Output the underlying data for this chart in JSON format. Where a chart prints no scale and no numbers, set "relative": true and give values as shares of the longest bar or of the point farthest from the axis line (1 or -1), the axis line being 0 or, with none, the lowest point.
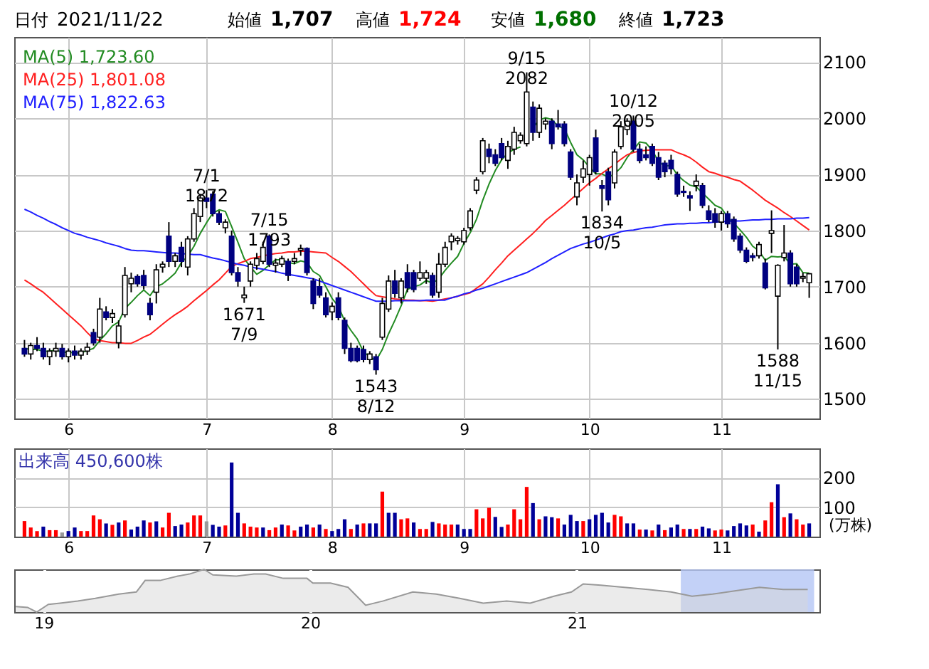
{
  "chart_data": [
    {
      "type": "candlestick",
      "title": "日付 2021/11/22",
      "annotations": [
        "始値 1,707",
        "高値 1,724",
        "安値 1,680",
        "終値 1,723",
        {
          "text": "7/1 1872",
          "y": 1872
        },
        {
          "text": "1671 7/9",
          "y": 1671
        },
        {
          "text": "7/15 1793",
          "y": 1793
        },
        {
          "text": "1543 8/12",
          "y": 1543
        },
        {
          "text": "9/15 2082",
          "y": 2082
        },
        {
          "text": "1834 10/5",
          "y": 1834
        },
        {
          "text": "10/12 2005",
          "y": 2005
        },
        {
          "text": "1588 11/15",
          "y": 1588
        }
      ],
      "categories": [
        null,
        null,
        null,
        null,
        null,
        null,
        null,
        "6",
        null,
        null,
        null,
        null,
        null,
        null,
        null,
        null,
        null,
        null,
        null,
        null,
        null,
        null,
        null,
        null,
        null,
        null,
        null,
        null,
        null,
        "7",
        null,
        null,
        null,
        null,
        null,
        null,
        null,
        null,
        null,
        null,
        null,
        null,
        null,
        null,
        null,
        null,
        null,
        null,
        null,
        "8",
        null,
        null,
        null,
        null,
        null,
        null,
        null,
        null,
        null,
        null,
        null,
        null,
        null,
        null,
        null,
        null,
        null,
        null,
        null,
        null,
        "9",
        null,
        null,
        null,
        null,
        null,
        null,
        null,
        null,
        null,
        null,
        null,
        null,
        null,
        null,
        null,
        null,
        null,
        null,
        null,
        "10",
        null,
        null,
        null,
        null,
        null,
        null,
        null,
        null,
        null,
        null,
        null,
        null,
        null,
        null,
        null,
        null,
        null,
        null,
        null,
        null,
        "11",
        null,
        null,
        null,
        null,
        null,
        null,
        null,
        null,
        null,
        null,
        null,
        null,
        null,
        null
      ],
      "ohlc": [
        [
          1590,
          1605,
          1575,
          1580
        ],
        [
          1580,
          1600,
          1570,
          1595
        ],
        [
          1595,
          1610,
          1585,
          1590
        ],
        [
          1590,
          1600,
          1570,
          1575
        ],
        [
          1575,
          1590,
          1560,
          1585
        ],
        [
          1585,
          1600,
          1575,
          1590
        ],
        [
          1590,
          1598,
          1570,
          1575
        ],
        [
          1575,
          1590,
          1565,
          1585
        ],
        [
          1585,
          1595,
          1570,
          1578
        ],
        [
          1578,
          1590,
          1570,
          1585
        ],
        [
          1585,
          1600,
          1578,
          1592
        ],
        [
          1618,
          1625,
          1595,
          1600
        ],
        [
          1610,
          1680,
          1600,
          1660
        ],
        [
          1655,
          1665,
          1640,
          1645
        ],
        [
          1645,
          1660,
          1635,
          1652
        ],
        [
          1600,
          1640,
          1590,
          1630
        ],
        [
          1650,
          1735,
          1645,
          1720
        ],
        [
          1705,
          1725,
          1690,
          1715
        ],
        [
          1718,
          1722,
          1700,
          1705
        ],
        [
          1720,
          1730,
          1695,
          1702
        ],
        [
          1670,
          1680,
          1640,
          1650
        ],
        [
          1690,
          1740,
          1670,
          1730
        ],
        [
          1735,
          1745,
          1725,
          1740
        ],
        [
          1790,
          1815,
          1735,
          1745
        ],
        [
          1745,
          1760,
          1735,
          1755
        ],
        [
          1770,
          1780,
          1735,
          1745
        ],
        [
          1735,
          1790,
          1720,
          1785
        ],
        [
          1785,
          1840,
          1780,
          1830
        ],
        [
          1825,
          1865,
          1815,
          1858
        ],
        [
          1858,
          1872,
          1840,
          1852
        ],
        [
          1865,
          1870,
          1825,
          1830
        ],
        [
          1830,
          1835,
          1810,
          1815
        ],
        [
          1805,
          1820,
          1795,
          1815
        ],
        [
          1790,
          1800,
          1720,
          1725
        ],
        [
          1725,
          1735,
          1700,
          1710
        ],
        [
          1680,
          1700,
          1671,
          1685
        ],
        [
          1710,
          1745,
          1700,
          1740
        ],
        [
          1738,
          1760,
          1730,
          1750
        ],
        [
          1745,
          1780,
          1740,
          1770
        ],
        [
          1790,
          1793,
          1735,
          1740
        ],
        [
          1738,
          1750,
          1725,
          1742
        ],
        [
          1740,
          1755,
          1735,
          1750
        ],
        [
          1745,
          1750,
          1710,
          1720
        ],
        [
          1745,
          1760,
          1740,
          1750
        ],
        [
          1765,
          1775,
          1755,
          1768
        ],
        [
          1768,
          1770,
          1720,
          1725
        ],
        [
          1710,
          1715,
          1660,
          1670
        ],
        [
          1700,
          1715,
          1680,
          1685
        ],
        [
          1680,
          1690,
          1645,
          1650
        ],
        [
          1655,
          1672,
          1640,
          1665
        ],
        [
          1680,
          1690,
          1640,
          1645
        ],
        [
          1640,
          1645,
          1580,
          1590
        ],
        [
          1590,
          1600,
          1565,
          1568
        ],
        [
          1590,
          1595,
          1565,
          1568
        ],
        [
          1588,
          1595,
          1565,
          1570
        ],
        [
          1570,
          1585,
          1562,
          1580
        ],
        [
          1575,
          1580,
          1543,
          1552
        ],
        [
          1610,
          1680,
          1605,
          1670
        ],
        [
          1660,
          1720,
          1655,
          1710
        ],
        [
          1710,
          1730,
          1680,
          1688
        ],
        [
          1680,
          1715,
          1670,
          1710
        ],
        [
          1725,
          1740,
          1690,
          1698
        ],
        [
          1725,
          1730,
          1690,
          1695
        ],
        [
          1715,
          1745,
          1710,
          1725
        ],
        [
          1715,
          1730,
          1705,
          1725
        ],
        [
          1720,
          1725,
          1680,
          1685
        ],
        [
          1690,
          1760,
          1680,
          1740
        ],
        [
          1740,
          1780,
          1735,
          1770
        ],
        [
          1780,
          1795,
          1765,
          1790
        ],
        [
          1782,
          1790,
          1775,
          1786
        ],
        [
          1780,
          1805,
          1775,
          1800
        ],
        [
          1805,
          1840,
          1800,
          1835
        ],
        [
          1872,
          1895,
          1865,
          1890
        ],
        [
          1905,
          1965,
          1900,
          1960
        ],
        [
          1945,
          1955,
          1920,
          1932
        ],
        [
          1935,
          1945,
          1915,
          1920
        ],
        [
          1955,
          1965,
          1925,
          1930
        ],
        [
          1925,
          1960,
          1910,
          1950
        ],
        [
          1945,
          1985,
          1935,
          1975
        ],
        [
          1960,
          1975,
          1955,
          1970
        ],
        [
          1955,
          2082,
          1950,
          2047
        ],
        [
          2020,
          2030,
          1960,
          1975
        ],
        [
          1975,
          2025,
          1965,
          2018
        ],
        [
          1990,
          2000,
          1980,
          1995
        ],
        [
          1995,
          2000,
          1945,
          1955
        ],
        [
          1990,
          2015,
          1980,
          1985
        ],
        [
          1990,
          1995,
          1950,
          1955
        ],
        [
          1940,
          1945,
          1890,
          1895
        ],
        [
          1860,
          1900,
          1845,
          1885
        ],
        [
          1895,
          1925,
          1885,
          1910
        ],
        [
          1900,
          1935,
          1880,
          1930
        ],
        [
          1965,
          1980,
          1900,
          1905
        ],
        [
          1880,
          1890,
          1834,
          1875
        ],
        [
          1905,
          1912,
          1845,
          1855
        ],
        [
          1885,
          1945,
          1875,
          1940
        ],
        [
          1950,
          1995,
          1945,
          1985
        ],
        [
          1980,
          2000,
          1970,
          1995
        ],
        [
          1995,
          2005,
          1940,
          1945
        ],
        [
          1945,
          1955,
          1920,
          1925
        ],
        [
          1935,
          1950,
          1925,
          1930
        ],
        [
          1950,
          1955,
          1915,
          1920
        ],
        [
          1930,
          1940,
          1890,
          1895
        ],
        [
          1920,
          1925,
          1895,
          1905
        ],
        [
          1925,
          1935,
          1900,
          1910
        ],
        [
          1900,
          1905,
          1860,
          1865
        ],
        [
          1870,
          1880,
          1860,
          1868
        ],
        [
          1862,
          1870,
          1835,
          1858
        ],
        [
          1880,
          1900,
          1870,
          1888
        ],
        [
          1880,
          1885,
          1840,
          1845
        ],
        [
          1835,
          1845,
          1815,
          1820
        ],
        [
          1830,
          1840,
          1805,
          1815
        ],
        [
          1815,
          1835,
          1800,
          1830
        ],
        [
          1830,
          1835,
          1805,
          1812
        ],
        [
          1820,
          1825,
          1780,
          1785
        ],
        [
          1790,
          1795,
          1760,
          1765
        ],
        [
          1765,
          1770,
          1742,
          1745
        ],
        [
          1755,
          1760,
          1745,
          1752
        ],
        [
          1755,
          1780,
          1750,
          1775
        ],
        [
          1742,
          1750,
          1695,
          1698
        ],
        [
          1795,
          1836,
          1760,
          1800
        ],
        [
          1683,
          1740,
          1588,
          1738
        ],
        [
          1752,
          1810,
          1745,
          1760
        ],
        [
          1760,
          1765,
          1700,
          1705
        ],
        [
          1735,
          1740,
          1700,
          1705
        ],
        [
          1715,
          1725,
          1708,
          1718
        ],
        [
          1707,
          1724,
          1680,
          1723
        ]
      ],
      "colors": [
        "#000080",
        "#ffffff",
        "#000080",
        "#000080",
        "#ffffff",
        "#ffffff",
        "#000080",
        "#ffffff",
        "#000080",
        "#ffffff",
        "#ffffff",
        "#000080",
        "#ffffff",
        "#000080",
        "#ffffff",
        "#ffffff",
        "#ffffff",
        "#ffffff",
        "#000080",
        "#000080",
        "#000080",
        "#ffffff",
        "#ffffff",
        "#000080",
        "#ffffff",
        "#000080",
        "#ffffff",
        "#ffffff",
        "#ffffff",
        "#000080",
        "#000080",
        "#000080",
        "#ffffff",
        "#000080",
        "#000080",
        "#ffffff",
        "#ffffff",
        "#ffffff",
        "#ffffff",
        "#000080",
        "#ffffff",
        "#ffffff",
        "#000080",
        "#ffffff",
        "#ffffff",
        "#000080",
        "#000080",
        "#000080",
        "#000080",
        "#ffffff",
        "#000080",
        "#000080",
        "#000080",
        "#000080",
        "#000080",
        "#ffffff",
        "#000080",
        "#ffffff",
        "#ffffff",
        "#000080",
        "#ffffff",
        "#000080",
        "#000080",
        "#ffffff",
        "#ffffff",
        "#000080",
        "#ffffff",
        "#ffffff",
        "#ffffff",
        "#ffffff",
        "#ffffff",
        "#ffffff",
        "#ffffff",
        "#ffffff",
        "#000080",
        "#000080",
        "#000080",
        "#ffffff",
        "#ffffff",
        "#ffffff",
        "#ffffff",
        "#000080",
        "#ffffff",
        "#ffffff",
        "#000080",
        "#000080",
        "#000080",
        "#000080",
        "#ffffff",
        "#ffffff",
        "#ffffff",
        "#000080",
        "#000080",
        "#000080",
        "#ffffff",
        "#ffffff",
        "#ffffff",
        "#000080",
        "#000080",
        "#000080",
        "#000080",
        "#000080",
        "#000080",
        "#000080",
        "#000080",
        "#000080",
        "#000080",
        "#ffffff",
        "#000080",
        "#000080",
        "#000080",
        "#ffffff",
        "#000080",
        "#000080",
        "#000080",
        "#000080",
        "#000080",
        "#ffffff",
        "#000080",
        "#ffffff",
        "#ffffff",
        "#ffffff",
        "#000080",
        "#000080",
        "#ffffff",
        "#ffffff"
      ],
      "series": [
        {
          "name": "MA(5) 1,723.60",
          "type": "line",
          "color": "#228b22",
          "values": [
            1590,
            1588,
            1588,
            1585,
            1585,
            1587,
            1583,
            1583,
            1582,
            1582,
            1586,
            1590,
            1604,
            1616,
            1630,
            1637,
            1661,
            1672,
            1684,
            1694,
            1684,
            1700,
            1705,
            1714,
            1724,
            1743,
            1754,
            1772,
            1795,
            1814,
            1831,
            1837,
            1834,
            1807,
            1779,
            1750,
            1735,
            1722,
            1729,
            1739,
            1748,
            1748,
            1743,
            1741,
            1746,
            1743,
            1727,
            1720,
            1700,
            1679,
            1665,
            1639,
            1622,
            1607,
            1584,
            1575,
            1568,
            1588,
            1616,
            1640,
            1666,
            1695,
            1700,
            1703,
            1711,
            1706,
            1714,
            1729,
            1742,
            1754,
            1777,
            1796,
            1820,
            1854,
            1883,
            1907,
            1926,
            1938,
            1945,
            1949,
            null,
            1983,
            1997,
            2001,
            1998,
            1986,
            1982,
            1957,
            1935,
            1926,
            1913,
            1901,
            1901,
            1895,
            1901,
            1912,
            1930,
            1944,
            1958,
            1956,
            1943,
            1923,
            1915,
            1916,
            1899,
            1889,
            1881,
            1878,
            1867,
            1856,
            1845,
            1840,
            1824,
            1813,
            1801,
            1788,
            1772,
            1764,
            1747,
            1754,
            1753,
            1754,
            1740,
            1741,
            1725,
            1724
          ]
        },
        {
          "name": "MA(25) 1,801.08",
          "type": "line",
          "color": "#ff2020",
          "values": [
            1712,
            1705,
            1697,
            1690,
            1680,
            1670,
            1660,
            1650,
            1640,
            1630,
            1618,
            1607,
            1604,
            1602,
            1600,
            1600,
            1599,
            1599,
            1604,
            1610,
            1615,
            1624,
            1633,
            1642,
            1650,
            1657,
            1665,
            1675,
            1684,
            1693,
            1703,
            1712,
            1724,
            1736,
            1741,
            1745,
            1750,
            1752,
            1755,
            1757,
            1759,
            1760,
            1762,
            1762,
            1763,
            1763,
            1762,
            1761,
            1760,
            1752,
            1745,
            1736,
            1727,
            1716,
            1705,
            1694,
            1684,
            1682,
            1680,
            1678,
            1677,
            1676,
            1676,
            1675,
            1675,
            1674,
            1676,
            1678,
            1680,
            1683,
            1686,
            1689,
            1697,
            1705,
            1717,
            1730,
            1742,
            1755,
            1765,
            1775,
            1785,
            1795,
            1806,
            1818,
            1827,
            1836,
            1845,
            1855,
            1865,
            1875,
            1885,
            1893,
            1902,
            1910,
            1918,
            1927,
            1935,
            1939,
            1942,
            1943,
            1944,
            1944,
            1944,
            1944,
            1939,
            1935,
            1930,
            1922,
            1913,
            1905,
            1902,
            1898,
            1895,
            1891,
            1888,
            1880,
            1872,
            1863,
            1854,
            1847,
            1840,
            1832,
            1825,
            1817,
            1809,
            1801
          ]
        },
        {
          "name": "MA(75) 1,822.63",
          "type": "line",
          "color": "#2020ff",
          "values": [
            1838,
            1833,
            1827,
            1822,
            1816,
            1811,
            1805,
            1800,
            1795,
            1792,
            1788,
            1785,
            1782,
            1778,
            1775,
            1772,
            1768,
            1765,
            1764,
            1764,
            1763,
            1762,
            1761,
            1760,
            1760,
            1759,
            1758,
            1757,
            1757,
            1754,
            1751,
            1749,
            1746,
            1743,
            1740,
            1738,
            1735,
            1733,
            1731,
            1729,
            1727,
            1724,
            1722,
            1720,
            1718,
            1716,
            1714,
            1710,
            1706,
            1702,
            1698,
            1694,
            1690,
            1686,
            1682,
            1678,
            1674,
            1674,
            1674,
            1675,
            1675,
            1675,
            1675,
            1675,
            1676,
            1676,
            1676,
            1676,
            1680,
            1683,
            1687,
            1690,
            1694,
            1697,
            1701,
            1705,
            1709,
            1713,
            1717,
            1721,
            1725,
            1731,
            1737,
            1743,
            1750,
            1756,
            1762,
            1768,
            1772,
            1776,
            1779,
            1783,
            1787,
            1791,
            1794,
            1798,
            1800,
            1801,
            1803,
            1805,
            1806,
            1808,
            1810,
            1811,
            1812,
            1812,
            1813,
            1813,
            1814,
            1814,
            1815,
            1816,
            1816,
            1817,
            1817,
            1818,
            1819,
            1819,
            1820,
            1820,
            1821,
            1821,
            1821,
            1822,
            1822,
            1823
          ]
        }
      ],
      "ylim": [
        1465,
        2145
      ],
      "yticks": [
        1500,
        1600,
        1700,
        1800,
        1900,
        2000,
        2100
      ],
      "grid": true,
      "legend": "top left",
      "line_style": "solid"
    },
    {
      "type": "bar",
      "ylabel": "(万株)",
      "annotations": [
        "出来高 450,600株"
      ],
      "categories": [
        null,
        null,
        null,
        null,
        null,
        null,
        null,
        "6",
        null,
        null,
        null,
        null,
        null,
        null,
        null,
        null,
        null,
        null,
        null,
        null,
        null,
        null,
        null,
        null,
        null,
        null,
        null,
        null,
        null,
        "7",
        null,
        null,
        null,
        null,
        null,
        null,
        null,
        null,
        null,
        null,
        null,
        null,
        null,
        null,
        null,
        null,
        null,
        null,
        null,
        "8",
        null,
        null,
        null,
        null,
        null,
        null,
        null,
        null,
        null,
        null,
        null,
        null,
        null,
        null,
        null,
        null,
        null,
        null,
        null,
        null,
        "9",
        null,
        null,
        null,
        null,
        null,
        null,
        null,
        null,
        null,
        null,
        null,
        null,
        null,
        null,
        null,
        null,
        null,
        null,
        null,
        "10",
        null,
        null,
        null,
        null,
        null,
        null,
        null,
        null,
        null,
        null,
        null,
        null,
        null,
        null,
        null,
        null,
        null,
        null,
        null,
        null,
        "11",
        null,
        null,
        null,
        null,
        null,
        null,
        null,
        null,
        null,
        null,
        null,
        null,
        null,
        null
      ],
      "values": [
        53,
        31,
        19,
        34,
        22,
        22,
        14,
        19,
        31,
        19,
        19,
        72,
        59,
        45,
        40,
        48,
        55,
        24,
        34,
        55,
        48,
        52,
        31,
        81,
        36,
        41,
        48,
        72,
        72,
        52,
        40,
        34,
        38,
        252,
        81,
        45,
        34,
        31,
        31,
        22,
        31,
        41,
        38,
        21,
        34,
        41,
        31,
        41,
        26,
        19,
        26,
        59,
        26,
        41,
        45,
        45,
        45,
        153,
        81,
        81,
        59,
        62,
        48,
        26,
        26,
        50,
        45,
        41,
        41,
        41,
        26,
        26,
        93,
        62,
        98,
        67,
        33,
        41,
        93,
        59,
        169,
        114,
        59,
        69,
        66,
        62,
        41,
        74,
        53,
        53,
        59,
        74,
        81,
        48,
        74,
        69,
        45,
        45,
        24,
        24,
        21,
        41,
        22,
        31,
        41,
        26,
        26,
        26,
        34,
        28,
        21,
        24,
        21,
        36,
        45,
        38,
        41,
        17,
        55,
        117,
        178,
        66,
        79,
        59,
        41,
        45
      ],
      "colors": [
        "#ff0000",
        "#ff0000",
        "#ff0000",
        "#000099",
        "#ff0000",
        "#ff0000",
        "#999999",
        "#000099",
        "#000099",
        "#ff0000",
        "#ff0000",
        "#ff0000",
        "#ff0000",
        "#000099",
        "#ff0000",
        "#000099",
        "#ff0000",
        "#000099",
        "#000099",
        "#000099",
        "#ff0000",
        "#000099",
        "#ff0000",
        "#ff0000",
        "#000099",
        "#000099",
        "#ff0000",
        "#ff0000",
        "#ff0000",
        "#999999",
        "#000099",
        "#000099",
        "#ff0000",
        "#000099",
        "#000099",
        "#ff0000",
        "#ff0000",
        "#ff0000",
        "#000099",
        "#ff0000",
        "#ff0000",
        "#000099",
        "#ff0000",
        "#ff0000",
        "#000099",
        "#000099",
        "#ff0000",
        "#000099",
        "#ff0000",
        "#000099",
        "#000099",
        "#000099",
        "#ff0000",
        "#000099",
        "#ff0000",
        "#000099",
        "#000099",
        "#ff0000",
        "#000099",
        "#000099",
        "#ff0000",
        "#ff0000",
        "#000099",
        "#ff0000",
        "#ff0000",
        "#000099",
        "#ff0000",
        "#ff0000",
        "#ff0000",
        "#000099",
        "#000099",
        "#000099",
        "#ff0000",
        "#ff0000",
        "#ff0000",
        "#000099",
        "#000099",
        "#ff0000",
        "#ff0000",
        "#ff0000",
        "#ff0000",
        "#000099",
        "#ff0000",
        "#000099",
        "#000099",
        "#ff0000",
        "#000099",
        "#000099",
        "#000099",
        "#ff0000",
        "#000099",
        "#000099",
        "#000099",
        "#000099",
        "#ff0000",
        "#ff0000",
        "#000099",
        "#000099",
        "#ff0000",
        "#000099",
        "#ff0000",
        "#000099",
        "#ff0000",
        "#000099",
        "#000099",
        "#ff0000",
        "#000099",
        "#ff0000",
        "#000099",
        "#000099",
        "#ff0000",
        "#ff0000",
        "#000099",
        "#000099",
        "#000099",
        "#000099",
        "#ff0000",
        "#000099",
        "#ff0000",
        "#ff0000",
        "#000099",
        "#ff0000",
        "#000099",
        "#ff0000",
        "#ff0000",
        "#000099"
      ],
      "ylim": [
        0,
        300
      ],
      "yticks": [
        100,
        200
      ],
      "grid": true
    },
    {
      "type": "area",
      "relative": true,
      "color": "#999999",
      "tick_labels": "x",
      "grid": "x",
      "x": [
        2018.896,
        2018.94,
        2018.974,
        2019.018,
        2019.062,
        2019.128,
        2019.194,
        2019.282,
        2019.348,
        2019.381,
        2019.437,
        2019.503,
        2019.547,
        2019.602,
        2019.635,
        2019.723,
        2019.789,
        2019.833,
        2019.899,
        2019.988,
        2020.01,
        2020.076,
        2020.142,
        2020.208,
        2020.274,
        2020.385,
        2020.473,
        2020.561,
        2020.649,
        2020.737,
        2020.825,
        2020.914,
        2020.98,
        2021.024,
        2021.09,
        2021.178,
        2021.266,
        2021.354,
        2021.432,
        2021.509,
        2021.597,
        2021.685,
        2021.774,
        2021.866
      ],
      "values": [
        0.13,
        0.11,
        0,
        0.18,
        0.21,
        0.26,
        0.32,
        0.42,
        0.47,
        0.74,
        0.74,
        0.84,
        0.89,
        1,
        0.87,
        0.84,
        0.89,
        0.89,
        0.79,
        0.79,
        0.68,
        0.68,
        0.58,
        0.16,
        0.26,
        0.47,
        0.42,
        0.32,
        0.21,
        0.26,
        0.21,
        0.37,
        0.47,
        0.66,
        0.63,
        0.58,
        0.53,
        0.47,
        0.37,
        0.42,
        0.5,
        0.58,
        0.53,
        0.53
      ],
      "xlim": [
        2018.89,
        2021.91
      ],
      "xticks": [
        {
          "value": 2019,
          "label": "19"
        },
        {
          "value": 2020,
          "label": "20"
        },
        {
          "value": 2021,
          "label": "21"
        }
      ],
      "bands": [
        {
          "axis": "x",
          "from": 2021.39,
          "to": 2021.89,
          "color": "#b4c6f5"
        }
      ]
    }
  ]
}
